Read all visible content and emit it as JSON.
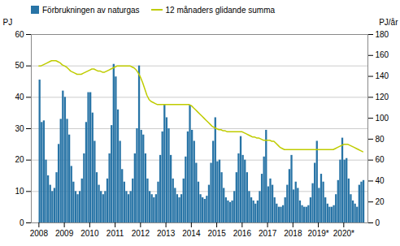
{
  "chart_data": {
    "type": "bar",
    "ylabel": "PJ",
    "y2label": "PJ/år",
    "xlim": [
      2007.7,
      2020.95
    ],
    "xticks": [
      2008,
      2009,
      2010,
      2011,
      2012,
      2013,
      2014,
      2015,
      2016,
      2017,
      2018,
      {
        "value": 2019,
        "label": "2019*"
      },
      {
        "value": 2020,
        "label": "2020*"
      }
    ],
    "ylim": [
      0,
      60
    ],
    "yticks": [
      0,
      10,
      20,
      30,
      40,
      50,
      60
    ],
    "y2lim": [
      0,
      180
    ],
    "y2ticks": [
      0,
      20,
      40,
      60,
      80,
      100,
      120,
      140,
      160,
      180
    ],
    "grid": true,
    "legend": "upper left",
    "series": [
      {
        "name": "Förbrukningen av naturgas",
        "type": "bar",
        "color": "#2874A6",
        "x": [
          2008.0416666667,
          2008.125,
          2008.2083333333,
          2008.2916666667,
          2008.375,
          2008.4583333333,
          2008.5416666667,
          2008.625,
          2008.7083333333,
          2008.7916666667,
          2008.875,
          2008.9583333333,
          2009.0416666667,
          2009.125,
          2009.2083333333,
          2009.2916666667,
          2009.375,
          2009.4583333333,
          2009.5416666667,
          2009.625,
          2009.7083333333,
          2009.7916666667,
          2009.875,
          2009.9583333333,
          2010.0416666667,
          2010.125,
          2010.2083333333,
          2010.2916666667,
          2010.375,
          2010.4583333333,
          2010.5416666667,
          2010.625,
          2010.7083333333,
          2010.7916666667,
          2010.875,
          2010.9583333333,
          2011.0416666667,
          2011.125,
          2011.2083333333,
          2011.2916666667,
          2011.375,
          2011.4583333333,
          2011.5416666667,
          2011.625,
          2011.7083333333,
          2011.7916666667,
          2011.875,
          2011.9583333333,
          2012.0416666667,
          2012.125,
          2012.2083333333,
          2012.2916666667,
          2012.375,
          2012.4583333333,
          2012.5416666667,
          2012.625,
          2012.7083333333,
          2012.7916666667,
          2012.875,
          2012.9583333333,
          2013.0416666667,
          2013.125,
          2013.2083333333,
          2013.2916666667,
          2013.375,
          2013.4583333333,
          2013.5416666667,
          2013.625,
          2013.7083333333,
          2013.7916666667,
          2013.875,
          2013.9583333333,
          2014.0416666667,
          2014.125,
          2014.2083333333,
          2014.2916666667,
          2014.375,
          2014.4583333333,
          2014.5416666667,
          2014.625,
          2014.7083333333,
          2014.7916666667,
          2014.875,
          2014.9583333333,
          2015.0416666667,
          2015.125,
          2015.2083333333,
          2015.2916666667,
          2015.375,
          2015.4583333333,
          2015.5416666667,
          2015.625,
          2015.7083333333,
          2015.7916666667,
          2015.875,
          2015.9583333333,
          2016.0416666667,
          2016.125,
          2016.2083333333,
          2016.2916666667,
          2016.375,
          2016.4583333333,
          2016.5416666667,
          2016.625,
          2016.7083333333,
          2016.7916666667,
          2016.875,
          2016.9583333333,
          2017.0416666667,
          2017.125,
          2017.2083333333,
          2017.2916666667,
          2017.375,
          2017.4583333333,
          2017.5416666667,
          2017.625,
          2017.7083333333,
          2017.7916666667,
          2017.875,
          2017.9583333333,
          2018.0416666667,
          2018.125,
          2018.2083333333,
          2018.2916666667,
          2018.375,
          2018.4583333333,
          2018.5416666667,
          2018.625,
          2018.7083333333,
          2018.7916666667,
          2018.875,
          2018.9583333333,
          2019.0416666667,
          2019.125,
          2019.2083333333,
          2019.2916666667,
          2019.375,
          2019.4583333333,
          2019.5416666667,
          2019.625,
          2019.7083333333,
          2019.7916666667,
          2019.875,
          2019.9583333333,
          2020.0416666667,
          2020.125,
          2020.2083333333,
          2020.2916666667,
          2020.375,
          2020.4583333333,
          2020.5416666667,
          2020.625,
          2020.7083333333,
          2020.7916666667
        ],
        "values": [
          45.5,
          32.0,
          32.5,
          20.0,
          15.0,
          12.0,
          10.0,
          11.0,
          16.0,
          25.0,
          33.0,
          42.0,
          40.0,
          33.0,
          28.0,
          18.0,
          13.0,
          10.0,
          9.0,
          10.0,
          14.0,
          22.0,
          32.0,
          41.5,
          41.5,
          35.0,
          26.0,
          16.0,
          12.0,
          10.0,
          9.0,
          10.0,
          14.0,
          22.0,
          31.0,
          50.5,
          46.5,
          36.0,
          26.0,
          17.0,
          13.0,
          10.0,
          9.0,
          10.0,
          14.0,
          22.0,
          30.0,
          50.0,
          29.5,
          28.0,
          22.0,
          14.0,
          10.0,
          9.0,
          8.0,
          9.0,
          13.0,
          21.5,
          29.0,
          37.5,
          33.5,
          30.0,
          21.5,
          14.0,
          11.0,
          9.0,
          8.0,
          9.0,
          14.0,
          21.0,
          29.0,
          37.5,
          29.5,
          26.0,
          19.0,
          13.0,
          9.0,
          8.0,
          7.5,
          8.5,
          12.0,
          19.0,
          26.0,
          33.5,
          19.5,
          20.0,
          16.0,
          11.0,
          8.0,
          7.0,
          6.5,
          7.0,
          10.0,
          16.0,
          22.0,
          27.5,
          21.5,
          20.0,
          16.0,
          10.0,
          8.0,
          7.0,
          6.0,
          7.0,
          10.0,
          15.5,
          21.0,
          29.5,
          11.5,
          14.0,
          12.0,
          8.0,
          6.0,
          5.0,
          5.0,
          5.5,
          8.0,
          12.0,
          17.0,
          21.5,
          10.5,
          13.0,
          11.0,
          7.0,
          5.5,
          5.0,
          5.0,
          5.5,
          8.0,
          12.5,
          19.0,
          26.0,
          11.0,
          15.5,
          13.0,
          8.0,
          6.0,
          5.0,
          5.0,
          5.5,
          9.0,
          13.5,
          20.0,
          27.0,
          20.0,
          20.5,
          14.0,
          9.0,
          7.0,
          6.0,
          5.0,
          12.0,
          13.0,
          13.5
        ]
      },
      {
        "name": "12 månaders glidande summa",
        "type": "line",
        "color": "#BFCC00",
        "axis": "y2",
        "x": [
          2008.0,
          2008.083,
          2008.167,
          2008.25,
          2008.333,
          2008.417,
          2008.5,
          2008.583,
          2008.667,
          2008.75,
          2008.833,
          2008.917,
          2009.0,
          2009.083,
          2009.167,
          2009.25,
          2009.333,
          2009.417,
          2009.5,
          2009.583,
          2009.667,
          2009.75,
          2009.833,
          2009.917,
          2010.0,
          2010.083,
          2010.167,
          2010.25,
          2010.333,
          2010.417,
          2010.5,
          2010.583,
          2010.667,
          2010.75,
          2010.833,
          2010.917,
          2011.0,
          2011.083,
          2011.167,
          2011.25,
          2011.333,
          2011.417,
          2011.5,
          2011.583,
          2011.667,
          2011.75,
          2011.833,
          2011.917,
          2012.0,
          2012.083,
          2012.167,
          2012.25,
          2012.333,
          2012.417,
          2012.5,
          2012.583,
          2012.667,
          2012.75,
          2012.833,
          2012.917,
          2013.0,
          2013.083,
          2013.167,
          2013.25,
          2013.333,
          2013.417,
          2013.5,
          2013.583,
          2013.667,
          2013.75,
          2013.833,
          2013.917,
          2014.0,
          2014.083,
          2014.167,
          2014.25,
          2014.333,
          2014.417,
          2014.5,
          2014.583,
          2014.667,
          2014.75,
          2014.833,
          2014.917,
          2015.0,
          2015.083,
          2015.167,
          2015.25,
          2015.333,
          2015.417,
          2015.5,
          2015.583,
          2015.667,
          2015.75,
          2015.833,
          2015.917,
          2016.0,
          2016.083,
          2016.167,
          2016.25,
          2016.333,
          2016.417,
          2016.5,
          2016.583,
          2016.667,
          2016.75,
          2016.833,
          2016.917,
          2017.0,
          2017.083,
          2017.167,
          2017.25,
          2017.333,
          2017.417,
          2017.5,
          2017.583,
          2017.667,
          2017.75,
          2017.833,
          2017.917,
          2018.0,
          2018.083,
          2018.167,
          2018.25,
          2018.333,
          2018.417,
          2018.5,
          2018.583,
          2018.667,
          2018.75,
          2018.833,
          2018.917,
          2019.0,
          2019.083,
          2019.167,
          2019.25,
          2019.333,
          2019.417,
          2019.5,
          2019.583,
          2019.667,
          2019.75,
          2019.833,
          2019.917,
          2020.0,
          2020.083,
          2020.167,
          2020.25,
          2020.333,
          2020.417,
          2020.5,
          2020.583,
          2020.667,
          2020.75
        ],
        "values": [
          150,
          150,
          151,
          152,
          153,
          154,
          155,
          155,
          155,
          154,
          153,
          151,
          150,
          149,
          147,
          145,
          144,
          143,
          142,
          142,
          142,
          143,
          144,
          145,
          146,
          147,
          147,
          146,
          145,
          145,
          144,
          144,
          145,
          146,
          147,
          148,
          149,
          150,
          150,
          150,
          150,
          150,
          150,
          150,
          149,
          148,
          146,
          143,
          139,
          134,
          128,
          122,
          118,
          116,
          115,
          114,
          113,
          113,
          113,
          113,
          113,
          113,
          113,
          113,
          113,
          113,
          113,
          113,
          113,
          113,
          113,
          113,
          112,
          110,
          108,
          106,
          104,
          102,
          100,
          98,
          96,
          94,
          92,
          91,
          90,
          89,
          89,
          88,
          88,
          87,
          87,
          87,
          87,
          87,
          87,
          87,
          87,
          86,
          85,
          84,
          83,
          82,
          82,
          81,
          81,
          80,
          79,
          79,
          79,
          79,
          78,
          78,
          76,
          74,
          72,
          71,
          70,
          70,
          70,
          70,
          70,
          70,
          70,
          70,
          70,
          70,
          70,
          70,
          70,
          70,
          70,
          70,
          70,
          70,
          70,
          70,
          70,
          70,
          70,
          70,
          71,
          72,
          73,
          74,
          75,
          75,
          75,
          74,
          73,
          72,
          71,
          70,
          69,
          68
        ]
      }
    ]
  }
}
